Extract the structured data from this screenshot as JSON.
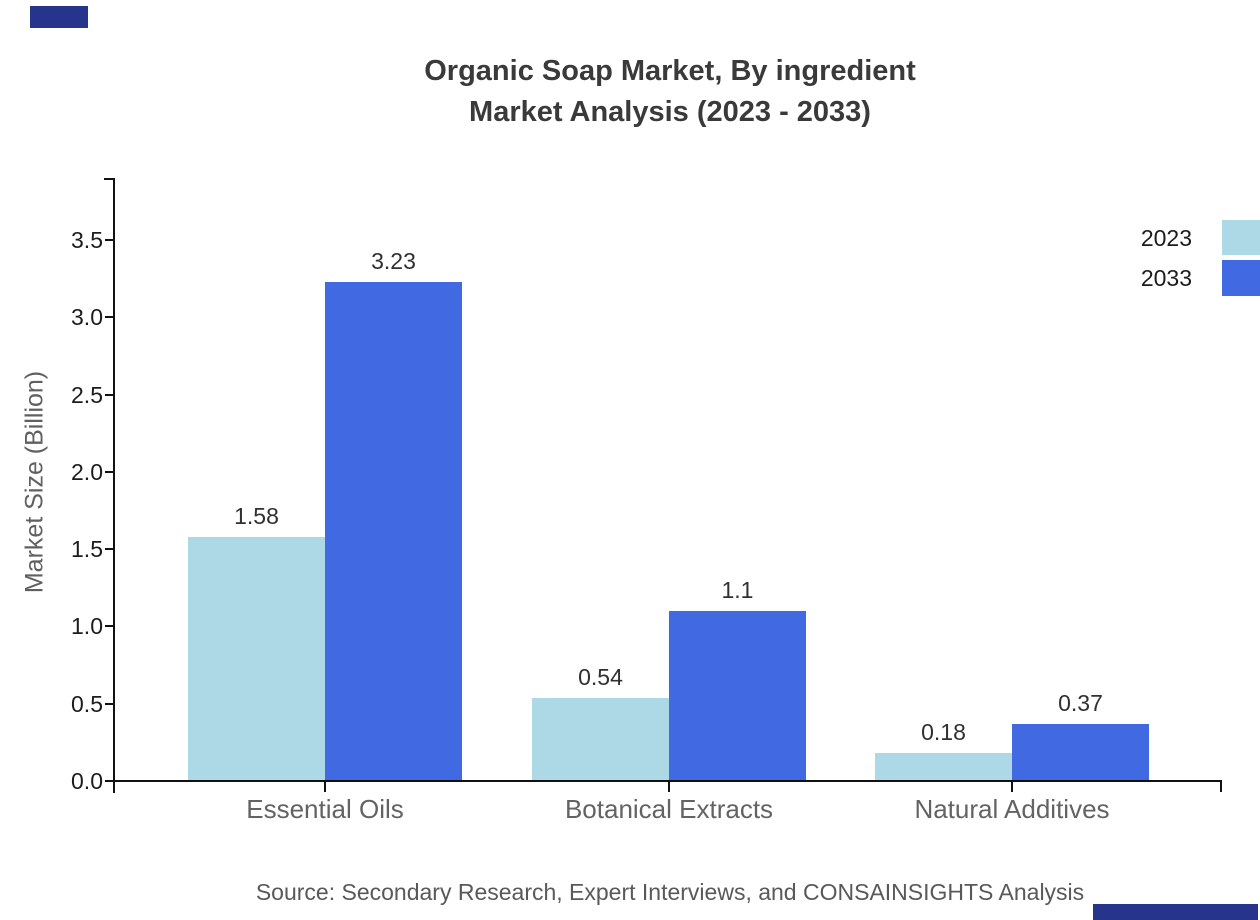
{
  "title": {
    "line1": "Organic Soap Market, By ingredient",
    "line2": "Market Analysis (2023 - 2033)"
  },
  "source": "Source: Secondary Research, Expert Interviews, and CONSAINSIGHTS Analysis",
  "y_axis": {
    "label": "Market Size (Billion)",
    "tick_labels": [
      "0.0",
      "0.5",
      "1.0",
      "1.5",
      "2.0",
      "2.5",
      "3.0",
      "3.5"
    ]
  },
  "legend": [
    {
      "label": "2023",
      "color": "#ADD8E6"
    },
    {
      "label": "2033",
      "color": "#4169E1"
    }
  ],
  "colors": {
    "series_2023": "#ADD8E6",
    "series_2033": "#4169E1",
    "axis": "#111111",
    "brand_navy": "#26348B",
    "title_text": "#3A3A3A",
    "muted_text": "#636363"
  },
  "chart_data": {
    "type": "bar",
    "title": "Organic Soap Market, By ingredient — Market Analysis (2023 - 2033)",
    "categories": [
      "Essential Oils",
      "Botanical Extracts",
      "Natural Additives"
    ],
    "series": [
      {
        "name": "2023",
        "color": "#ADD8E6",
        "values": [
          1.58,
          0.54,
          0.18
        ],
        "value_labels": [
          "1.58",
          "0.54",
          "0.18"
        ]
      },
      {
        "name": "2033",
        "color": "#4169E1",
        "values": [
          3.23,
          1.1,
          0.37
        ],
        "value_labels": [
          "3.23",
          "1.1",
          "0.37"
        ]
      }
    ],
    "xlabel": "",
    "ylabel": "Market Size (Billion)",
    "ylim": [
      0,
      3.9
    ],
    "yticks": [
      0,
      0.5,
      1,
      1.5,
      2,
      2.5,
      3,
      3.5
    ],
    "grid": false,
    "legend_position": "right-edge-clipped",
    "value_labels_shown": true
  }
}
